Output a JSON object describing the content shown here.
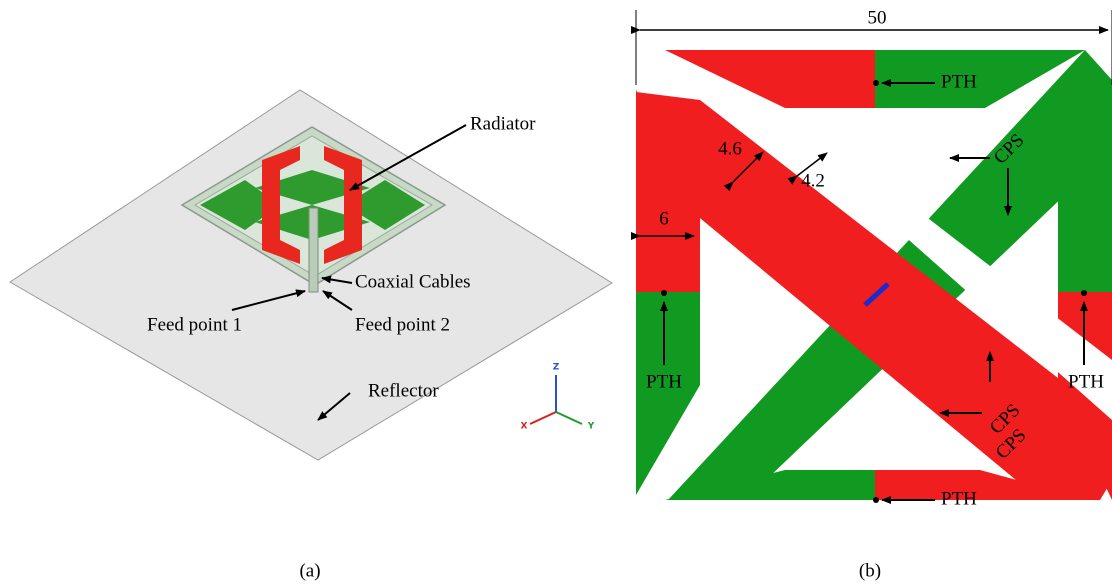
{
  "panel_a": {
    "labels": {
      "radiator": "Radiator",
      "coaxial_cables": "Coaxial Cables",
      "feed_point_1": "Feed point 1",
      "feed_point_2": "Feed point 2",
      "reflector": "Reflector"
    },
    "axes": {
      "z": "Z",
      "x": "X",
      "y": "Y"
    },
    "caption": "(a)"
  },
  "panel_b": {
    "dimensions": {
      "width": "50",
      "gap": "4.6",
      "strip": "4.2",
      "side": "6"
    },
    "pth": [
      "PTH",
      "PTH",
      "PTH",
      "PTH"
    ],
    "cps": [
      "CPS",
      "CPS",
      "CPS"
    ],
    "caption": "(b)"
  }
}
